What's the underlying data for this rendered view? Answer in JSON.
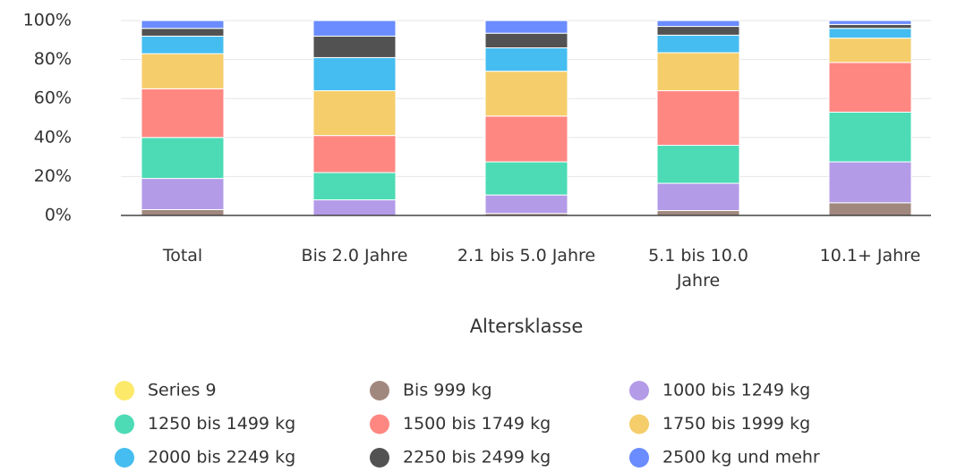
{
  "chart_data": {
    "type": "stacked_bar",
    "categories": [
      "Total",
      "Bis 2.0 Jahre",
      "2.1 bis 5.0 Jahre",
      "5.1 bis 10.0 Jahre",
      "10.1+ Jahre"
    ],
    "x_label": "Altersklasse",
    "ylim": [
      0,
      100
    ],
    "yticks": [
      {
        "value": 0,
        "label": "0%"
      },
      {
        "value": 20,
        "label": "20%"
      },
      {
        "value": 40,
        "label": "40%"
      },
      {
        "value": 60,
        "label": "60%"
      },
      {
        "value": 80,
        "label": "80%"
      },
      {
        "value": 100,
        "label": "100%"
      }
    ],
    "grid": true,
    "series": [
      {
        "name": "Series 9",
        "color": "#fce96a",
        "values": [
          0,
          0,
          0,
          0,
          0
        ]
      },
      {
        "name": "Bis 999 kg",
        "color": "#a1887f",
        "values": [
          3,
          0,
          1,
          2.5,
          6.5
        ]
      },
      {
        "name": "1000 bis 1249 kg",
        "color": "#b39be8",
        "values": [
          16,
          8,
          9.5,
          14,
          21
        ]
      },
      {
        "name": "1250 bis 1499 kg",
        "color": "#4cdbb5",
        "values": [
          21,
          14,
          17,
          19.5,
          25.5
        ]
      },
      {
        "name": "1500 bis 1749 kg",
        "color": "#ff8782",
        "values": [
          25,
          19,
          23.5,
          28,
          25.5
        ]
      },
      {
        "name": "1750 bis 1999 kg",
        "color": "#f5cd6a",
        "values": [
          18,
          23,
          23,
          19.5,
          12.5
        ]
      },
      {
        "name": "2000 bis 2249 kg",
        "color": "#45bdf0",
        "values": [
          9,
          17,
          12,
          9,
          5
        ]
      },
      {
        "name": "2250 bis 2499 kg",
        "color": "#525252",
        "values": [
          4,
          11,
          7.5,
          4.5,
          2
        ]
      },
      {
        "name": "2500 kg und mehr",
        "color": "#6a8cff",
        "values": [
          4,
          8,
          6.5,
          3,
          2
        ]
      }
    ]
  }
}
